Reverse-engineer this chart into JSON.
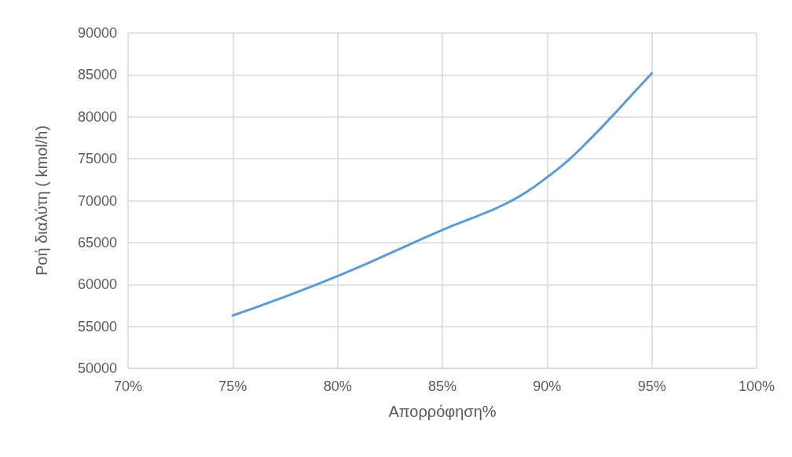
{
  "chart_data": {
    "type": "line",
    "xlabel": "Απορρόφηση%",
    "ylabel": "Ροή διαλύτη ( kmol/h)",
    "x": [
      75,
      80,
      85,
      87,
      88,
      89,
      90,
      91,
      92,
      93,
      94,
      95
    ],
    "series": [
      {
        "color": "#5b9bd5",
        "values": [
          56300,
          61000,
          66500,
          68500,
          69600,
          71000,
          72800,
          74800,
          77200,
          79800,
          82500,
          85200
        ]
      }
    ],
    "xlim": [
      70,
      100
    ],
    "xticks": [
      {
        "value": 70,
        "label": "70%"
      },
      {
        "value": 75,
        "label": "75%"
      },
      {
        "value": 80,
        "label": "80%"
      },
      {
        "value": 85,
        "label": "85%"
      },
      {
        "value": 90,
        "label": "90%"
      },
      {
        "value": 95,
        "label": "95%"
      },
      {
        "value": 100,
        "label": "100%"
      }
    ],
    "ylim": [
      50000,
      90000
    ],
    "yticks": [
      50000,
      55000,
      60000,
      65000,
      70000,
      75000,
      80000,
      85000,
      90000
    ],
    "grid": true,
    "marker": "none",
    "line_style": "solid"
  }
}
